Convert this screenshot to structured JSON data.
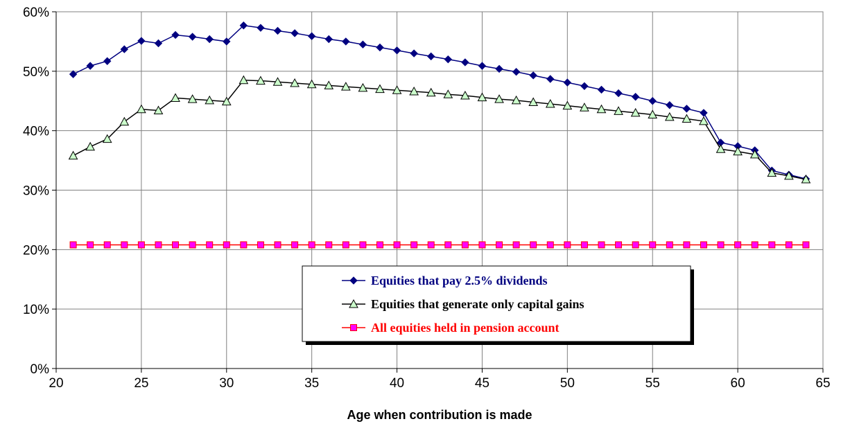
{
  "chart_data": {
    "type": "line",
    "xlabel": "Age when contribution is made",
    "x": [
      21,
      22,
      23,
      24,
      25,
      26,
      27,
      28,
      29,
      30,
      31,
      32,
      33,
      34,
      35,
      36,
      37,
      38,
      39,
      40,
      41,
      42,
      43,
      44,
      45,
      46,
      47,
      48,
      49,
      50,
      51,
      52,
      53,
      54,
      55,
      56,
      57,
      58,
      59,
      60,
      61,
      62,
      63,
      64
    ],
    "series": [
      {
        "name": "Equities that pay 2.5% dividends",
        "color": "#000080",
        "marker": "diamond",
        "marker_fill": "#000080",
        "values": [
          49.5,
          50.9,
          51.7,
          53.7,
          55.1,
          54.7,
          56.1,
          55.8,
          55.4,
          55.0,
          57.7,
          57.3,
          56.8,
          56.4,
          55.9,
          55.4,
          55.0,
          54.5,
          54.0,
          53.5,
          53.0,
          52.5,
          52.0,
          51.5,
          50.9,
          50.4,
          49.9,
          49.3,
          48.7,
          48.1,
          47.5,
          46.9,
          46.3,
          45.7,
          45.0,
          44.3,
          43.7,
          43.0,
          38.0,
          37.4,
          36.7,
          33.3,
          32.6,
          31.9
        ]
      },
      {
        "name": "Equities that generate only capital gains",
        "color": "#000000",
        "marker": "triangle",
        "marker_fill": "#ccffcc",
        "values": [
          35.8,
          37.3,
          38.6,
          41.5,
          43.6,
          43.4,
          45.5,
          45.3,
          45.1,
          44.9,
          48.5,
          48.4,
          48.2,
          48.0,
          47.8,
          47.6,
          47.4,
          47.2,
          47.0,
          46.8,
          46.6,
          46.4,
          46.1,
          45.9,
          45.6,
          45.3,
          45.1,
          44.8,
          44.5,
          44.2,
          43.9,
          43.6,
          43.3,
          43.0,
          42.7,
          42.3,
          42.0,
          41.6,
          36.9,
          36.5,
          36.0,
          32.9,
          32.4,
          31.8
        ]
      },
      {
        "name": "All equities held in pension account",
        "color": "#ff0000",
        "marker": "square",
        "marker_fill": "#ff00ff",
        "values": [
          20.8,
          20.8,
          20.8,
          20.8,
          20.8,
          20.8,
          20.8,
          20.8,
          20.8,
          20.8,
          20.8,
          20.8,
          20.8,
          20.8,
          20.8,
          20.8,
          20.8,
          20.8,
          20.8,
          20.8,
          20.8,
          20.8,
          20.8,
          20.8,
          20.8,
          20.8,
          20.8,
          20.8,
          20.8,
          20.8,
          20.8,
          20.8,
          20.8,
          20.8,
          20.8,
          20.8,
          20.8,
          20.8,
          20.8,
          20.8,
          20.8,
          20.8,
          20.8,
          20.8
        ]
      }
    ],
    "xlim": [
      20,
      65
    ],
    "xticks": [
      20,
      25,
      30,
      35,
      40,
      45,
      50,
      55,
      60,
      65
    ],
    "ylim": [
      0,
      60
    ],
    "yticks": [
      {
        "value": 0,
        "label": "0%"
      },
      {
        "value": 10,
        "label": "10%"
      },
      {
        "value": 20,
        "label": "20%"
      },
      {
        "value": 30,
        "label": "30%"
      },
      {
        "value": 40,
        "label": "40%"
      },
      {
        "value": 50,
        "label": "50%"
      },
      {
        "value": 60,
        "label": "60%"
      }
    ],
    "grid": true,
    "legend": "lower center"
  }
}
